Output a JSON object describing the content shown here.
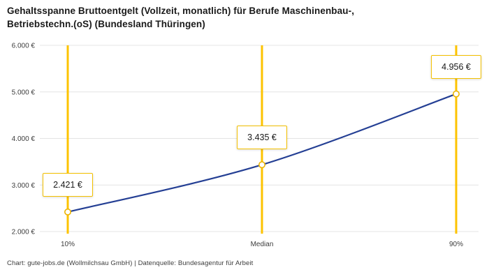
{
  "title": {
    "line1": "Gehaltsspanne Bruttoentgelt (Vollzeit, monatlich) für Berufe Maschinenbau-,",
    "line2": "Betriebstechn.(oS) (Bundesland Thüringen)"
  },
  "footer": "Chart: gute-jobs.de (Wollmilchsau GmbH) | Datenquelle: Bundesagentur für Arbeit",
  "chart_data": {
    "type": "line",
    "title": "Gehaltsspanne Bruttoentgelt (Vollzeit, monatlich) für Berufe Maschinenbau-, Betriebstechn.(oS) (Bundesland Thüringen)",
    "categories": [
      "10%",
      "Median",
      "90%"
    ],
    "values": [
      2421,
      3435,
      4956
    ],
    "value_labels": [
      "2.421 €",
      "3.435 €",
      "4.956 €"
    ],
    "y_ticks": [
      2000,
      3000,
      4000,
      5000,
      6000
    ],
    "y_tick_labels": [
      "2.000 €",
      "3.000 €",
      "4.000 €",
      "5.000 €",
      "6.000 €"
    ],
    "ylim": [
      2000,
      6000
    ],
    "grid": true,
    "legend": "none",
    "xlabel": "",
    "ylabel": "",
    "colors": {
      "line": "#243f94",
      "vertical_line": "#fdc300",
      "marker_stroke": "#ecb400",
      "marker_fill": "#ffffff",
      "label_border": "#f3c000",
      "grid": "#e4e4e4",
      "axis_text": "#3c3c3c",
      "title_text": "#1a1a1a"
    }
  }
}
